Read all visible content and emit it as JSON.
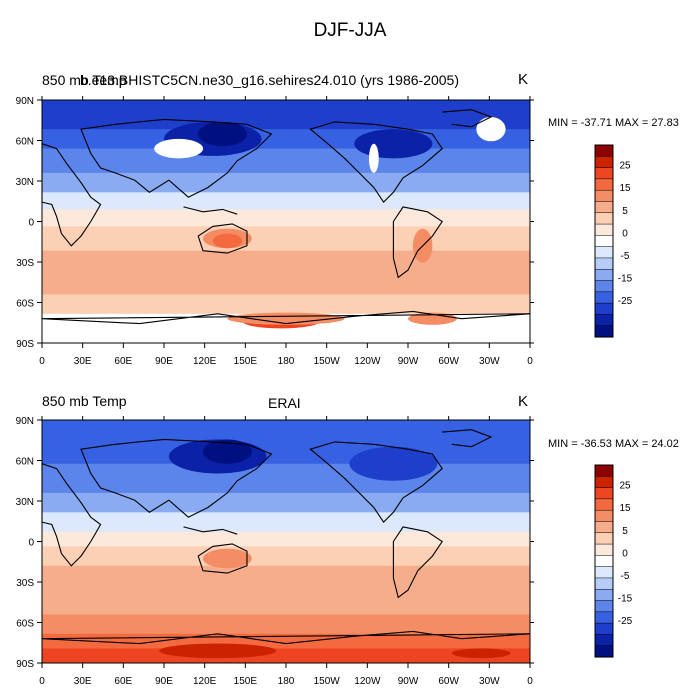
{
  "figure": {
    "title": "DJF-JJA"
  },
  "panels": [
    {
      "left_label": "850 mb Temp",
      "center_label": "b.e13.BHISTC5CN.ne30_g16.sehires24.010 (yrs 1986-2005)",
      "units": "K",
      "stats": "MIN = -37.71 MAX =  27.83",
      "has_missing_mask": true
    },
    {
      "left_label": "850 mb Temp",
      "center_label": "ERAI",
      "units": "K",
      "stats": "MIN = -36.53 MAX =  24.02",
      "has_missing_mask": false
    }
  ],
  "chart_data": [
    {
      "type": "heatmap",
      "projection": "cylindrical equidistant, centered 180",
      "xticks": [
        "0",
        "30E",
        "60E",
        "90E",
        "120E",
        "150E",
        "180",
        "150W",
        "120W",
        "90W",
        "60W",
        "30W",
        "0"
      ],
      "yticks": [
        "90N",
        "60N",
        "30N",
        "0",
        "30S",
        "60S",
        "90S"
      ],
      "colorbar_labels": [
        "25",
        "15",
        "5",
        "0",
        "-5",
        "-15",
        "-25"
      ],
      "colorbar_colors": [
        "#8b0000",
        "#cc2200",
        "#ee4422",
        "#f46a40",
        "#f48c64",
        "#f5ad8c",
        "#fbd0b5",
        "#fde9dc",
        "#ffffff",
        "#dce8fb",
        "#b6cdf8",
        "#8aaaf2",
        "#5b85eb",
        "#3561e2",
        "#1d3fcc",
        "#0a21a8",
        "#001080"
      ],
      "min": -37.71,
      "max": 27.83
    },
    {
      "type": "heatmap",
      "projection": "cylindrical equidistant, centered 180",
      "xticks": [
        "0",
        "30E",
        "60E",
        "90E",
        "120E",
        "150E",
        "180",
        "150W",
        "120W",
        "90W",
        "60W",
        "30W",
        "0"
      ],
      "yticks": [
        "90N",
        "60N",
        "30N",
        "0",
        "30S",
        "60S",
        "90S"
      ],
      "colorbar_labels": [
        "25",
        "15",
        "5",
        "0",
        "-5",
        "-15",
        "-25"
      ],
      "colorbar_colors": [
        "#8b0000",
        "#cc2200",
        "#ee4422",
        "#f46a40",
        "#f48c64",
        "#f5ad8c",
        "#fbd0b5",
        "#fde9dc",
        "#ffffff",
        "#dce8fb",
        "#b6cdf8",
        "#8aaaf2",
        "#5b85eb",
        "#3561e2",
        "#1d3fcc",
        "#0a21a8",
        "#001080"
      ],
      "min": -36.53,
      "max": 24.02
    }
  ]
}
